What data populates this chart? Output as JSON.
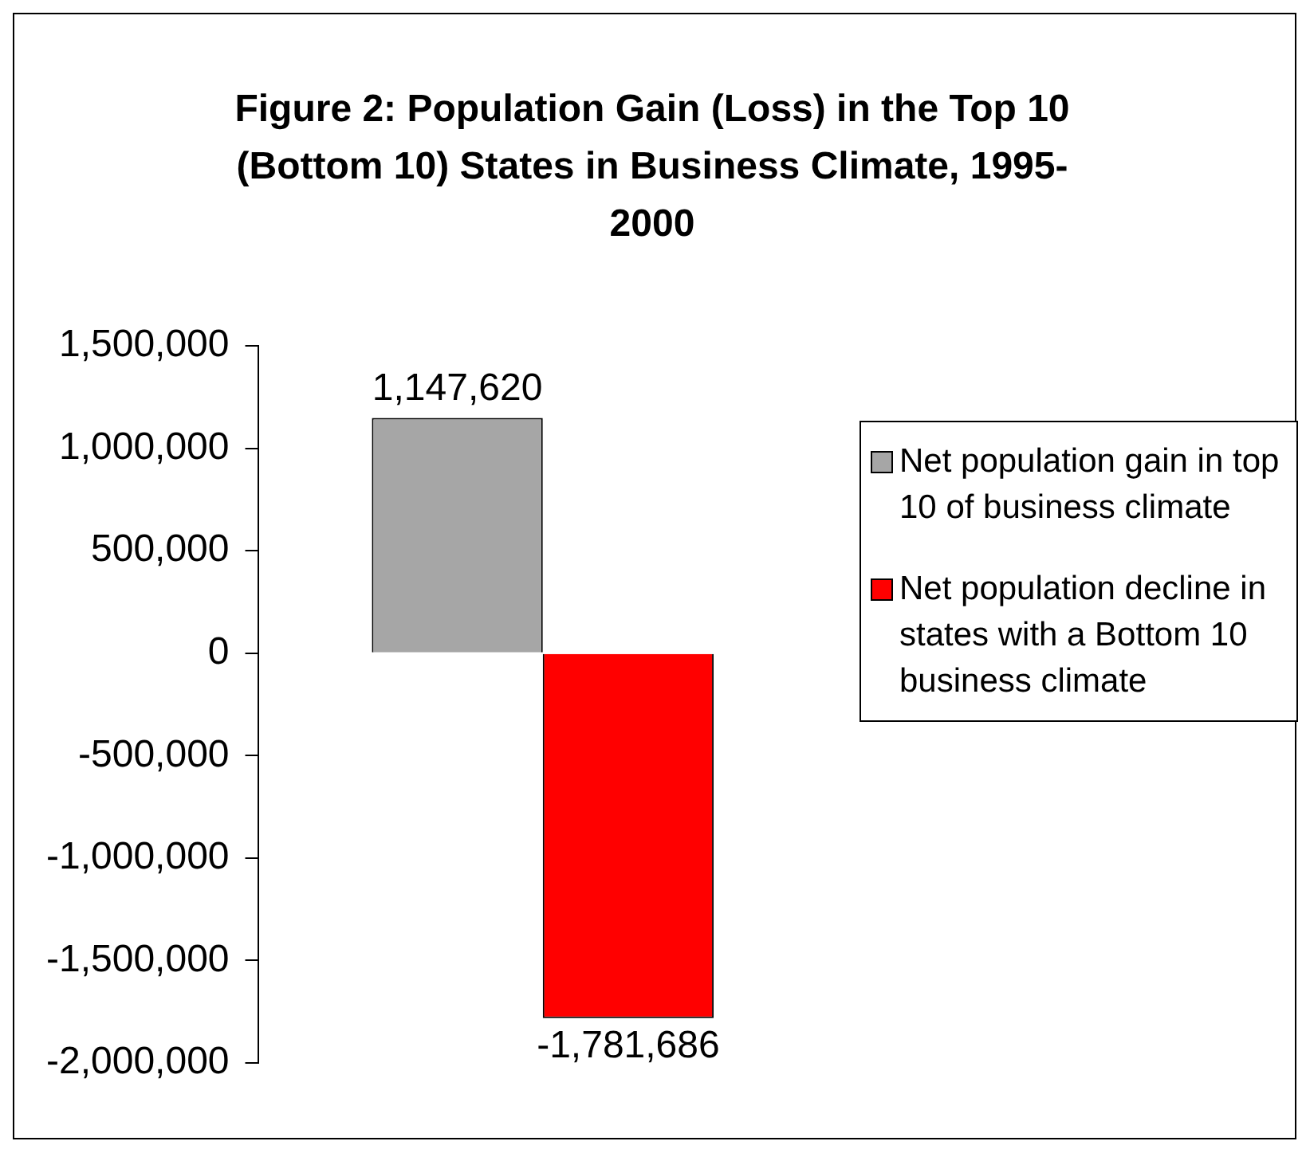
{
  "chart_data": {
    "type": "bar",
    "title": "Figure 2: Population Gain (Loss) in the Top 10 (Bottom 10) States in Business Climate, 1995-2000",
    "categories": [
      null
    ],
    "series": [
      {
        "name": "Net population gain in top 10 of business climate",
        "color": "#a6a6a6",
        "values": [
          1147620
        ],
        "value_labels": [
          "1,147,620"
        ]
      },
      {
        "name": "Net population decline in states with a Bottom 10 business climate",
        "color": "#ff0000",
        "values": [
          -1781686
        ],
        "value_labels": [
          "-1,781,686"
        ]
      }
    ],
    "ylim": [
      -2000000,
      1500000
    ],
    "yticks": [
      {
        "value": -2000000,
        "label": "-2,000,000"
      },
      {
        "value": -1500000,
        "label": "-1,500,000"
      },
      {
        "value": -1000000,
        "label": "-1,000,000"
      },
      {
        "value": -500000,
        "label": "-500,000"
      },
      {
        "value": 0,
        "label": "0"
      },
      {
        "value": 500000,
        "label": "500,000"
      },
      {
        "value": 1000000,
        "label": "1,000,000"
      },
      {
        "value": 1500000,
        "label": "1,500,000"
      }
    ],
    "grid": false,
    "legend": "right",
    "tick_labels": "y"
  }
}
